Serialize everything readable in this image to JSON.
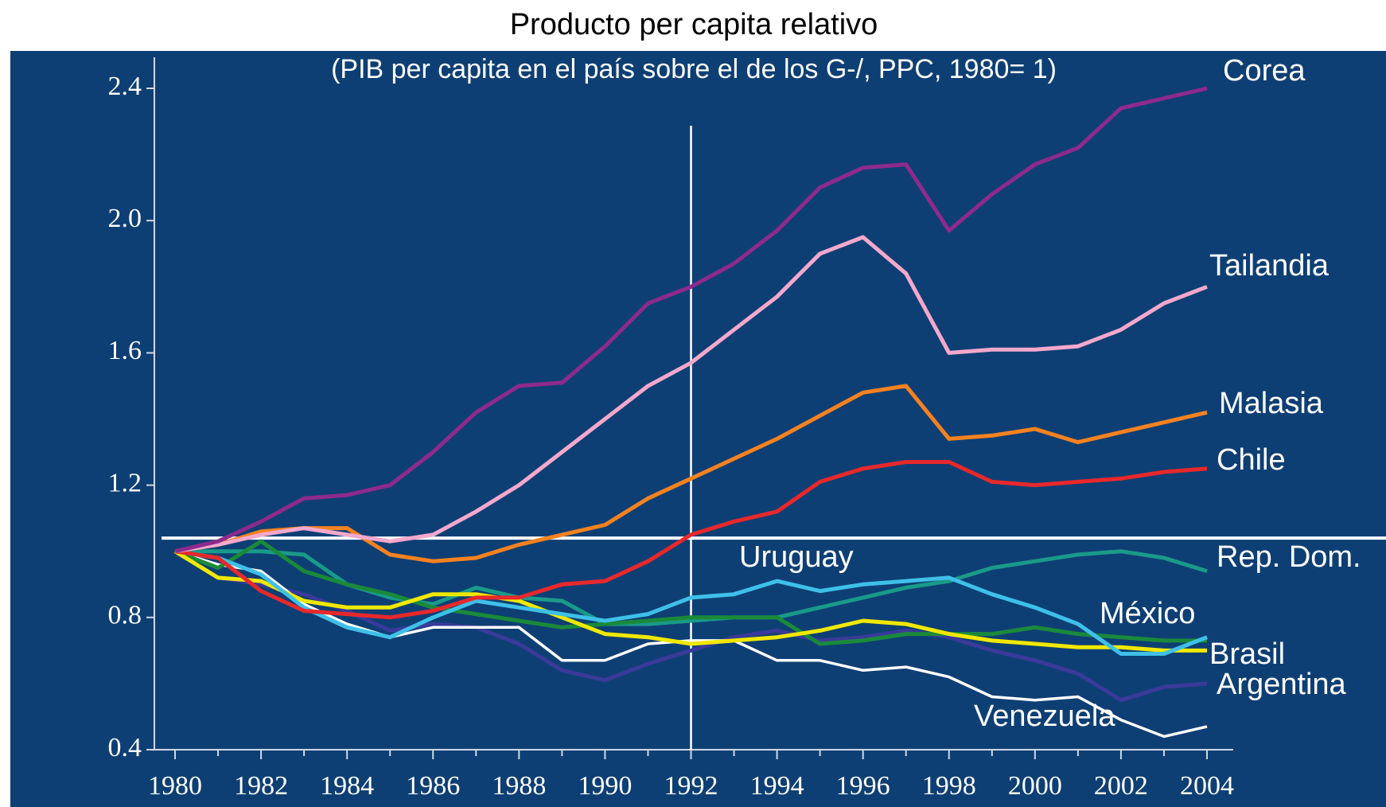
{
  "chart_data": {
    "type": "line",
    "title": "Producto per capita relativo",
    "subtitle": "(PIB per capita en el país sobre el de los G-/, PPC, 1980= 1)",
    "x": [
      1980,
      1981,
      1982,
      1983,
      1984,
      1985,
      1986,
      1987,
      1988,
      1989,
      1990,
      1991,
      1992,
      1993,
      1994,
      1995,
      1996,
      1997,
      1998,
      1999,
      2000,
      2001,
      2002,
      2003,
      2004
    ],
    "xlim": [
      1980,
      2004
    ],
    "xticks": [
      1980,
      1982,
      1984,
      1986,
      1988,
      1990,
      1992,
      1994,
      1996,
      1998,
      2000,
      2002,
      2004
    ],
    "xticks_minor": [
      1981,
      1983,
      1985,
      1987,
      1989,
      1991,
      1993,
      1995,
      1997,
      1999,
      2001,
      2003
    ],
    "ylim": [
      0.4,
      2.4
    ],
    "yticks": [
      {
        "value": 0.4,
        "label": "0.4"
      },
      {
        "value": 0.8,
        "label": "0.8"
      },
      {
        "value": 1.2,
        "label": "1.2"
      },
      {
        "value": 1.6,
        "label": "1.6"
      },
      {
        "value": 2.0,
        "label": "2.0"
      },
      {
        "value": 2.4,
        "label": "2.4"
      }
    ],
    "vline_x": 1992,
    "hline_y": 1.04,
    "series": [
      {
        "name": "Corea",
        "color": "#8e2a8e",
        "values": [
          1.0,
          1.03,
          1.09,
          1.16,
          1.17,
          1.2,
          1.3,
          1.42,
          1.5,
          1.51,
          1.62,
          1.75,
          1.8,
          1.87,
          1.97,
          2.1,
          2.16,
          2.17,
          1.97,
          2.08,
          2.17,
          2.22,
          2.34,
          2.37,
          2.4
        ]
      },
      {
        "name": "Tailandia",
        "color": "#f4a8cc",
        "values": [
          1.0,
          1.02,
          1.05,
          1.07,
          1.05,
          1.03,
          1.05,
          1.12,
          1.2,
          1.3,
          1.4,
          1.5,
          1.57,
          1.67,
          1.77,
          1.9,
          1.95,
          1.84,
          1.6,
          1.61,
          1.61,
          1.62,
          1.67,
          1.75,
          1.8
        ]
      },
      {
        "name": "Malasia",
        "color": "#f5821f",
        "values": [
          1.0,
          1.02,
          1.06,
          1.07,
          1.07,
          0.99,
          0.97,
          0.98,
          1.02,
          1.05,
          1.08,
          1.16,
          1.22,
          1.28,
          1.34,
          1.41,
          1.48,
          1.5,
          1.34,
          1.35,
          1.37,
          1.33,
          1.36,
          1.39,
          1.42
        ]
      },
      {
        "name": "Chile",
        "color": "#e8282b",
        "values": [
          1.0,
          0.98,
          0.88,
          0.82,
          0.81,
          0.8,
          0.82,
          0.86,
          0.86,
          0.9,
          0.91,
          0.97,
          1.05,
          1.09,
          1.12,
          1.21,
          1.25,
          1.27,
          1.27,
          1.21,
          1.2,
          1.21,
          1.22,
          1.24,
          1.25
        ]
      },
      {
        "name": "Rep. Dom.",
        "color": "#1a9a8a",
        "values": [
          1.0,
          1.0,
          1.0,
          0.99,
          0.9,
          0.86,
          0.84,
          0.89,
          0.86,
          0.85,
          0.78,
          0.78,
          0.79,
          0.8,
          0.8,
          0.83,
          0.86,
          0.89,
          0.91,
          0.95,
          0.97,
          0.99,
          1.0,
          0.98,
          0.94
        ]
      },
      {
        "name": "Uruguay",
        "color": "#3ec0e8",
        "values": [
          1.0,
          0.98,
          0.93,
          0.83,
          0.77,
          0.74,
          0.8,
          0.85,
          0.83,
          0.81,
          0.79,
          0.81,
          0.86,
          0.87,
          0.91,
          0.88,
          0.9,
          0.91,
          0.92,
          0.87,
          0.83,
          0.78,
          0.69,
          0.69,
          0.74
        ]
      },
      {
        "name": "México",
        "color": "#1a8a3a",
        "values": [
          1.0,
          0.95,
          1.03,
          0.94,
          0.9,
          0.87,
          0.83,
          0.81,
          0.79,
          0.77,
          0.78,
          0.79,
          0.8,
          0.8,
          0.8,
          0.72,
          0.73,
          0.75,
          0.75,
          0.75,
          0.77,
          0.75,
          0.74,
          0.73,
          0.73
        ]
      },
      {
        "name": "Brasil",
        "color": "#f0e800",
        "values": [
          1.0,
          0.92,
          0.91,
          0.85,
          0.83,
          0.83,
          0.87,
          0.87,
          0.85,
          0.8,
          0.75,
          0.74,
          0.72,
          0.73,
          0.74,
          0.76,
          0.79,
          0.78,
          0.75,
          0.73,
          0.72,
          0.71,
          0.71,
          0.7,
          0.7
        ]
      },
      {
        "name": "Argentina",
        "color": "#3a3a9a",
        "values": [
          1.0,
          0.92,
          0.9,
          0.87,
          0.82,
          0.76,
          0.78,
          0.77,
          0.72,
          0.64,
          0.61,
          0.66,
          0.7,
          0.74,
          0.76,
          0.73,
          0.74,
          0.76,
          0.74,
          0.7,
          0.67,
          0.63,
          0.55,
          0.59,
          0.6
        ]
      },
      {
        "name": "Venezuela",
        "color": "#ffffff",
        "values": [
          1.0,
          0.96,
          0.94,
          0.84,
          0.78,
          0.74,
          0.77,
          0.77,
          0.77,
          0.67,
          0.67,
          0.72,
          0.73,
          0.73,
          0.67,
          0.67,
          0.64,
          0.65,
          0.62,
          0.56,
          0.55,
          0.56,
          0.49,
          0.44,
          0.47
        ]
      }
    ]
  }
}
